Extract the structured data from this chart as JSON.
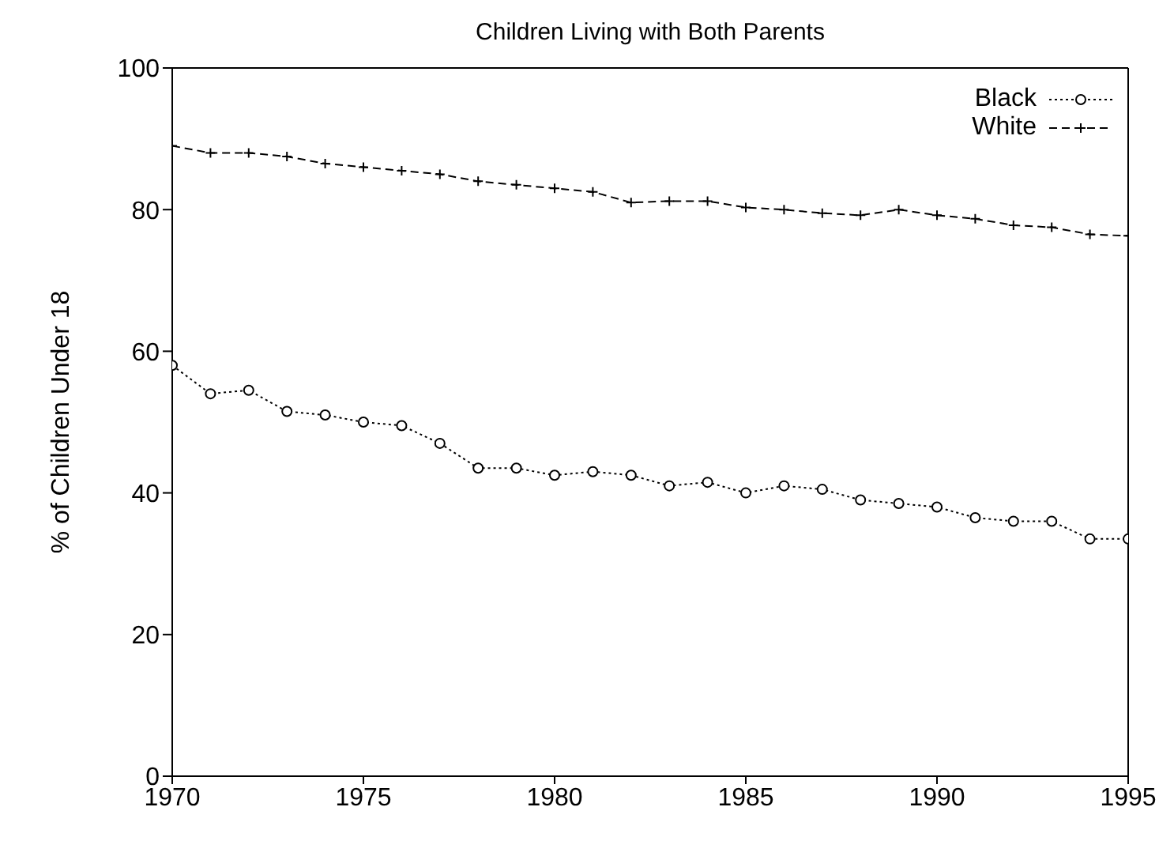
{
  "chart_data": {
    "type": "line",
    "title": "Children Living with Both Parents",
    "ylabel": "% of Children Under 18",
    "x": [
      1970,
      1971,
      1972,
      1973,
      1974,
      1975,
      1976,
      1977,
      1978,
      1979,
      1980,
      1981,
      1982,
      1983,
      1984,
      1985,
      1986,
      1987,
      1988,
      1989,
      1990,
      1991,
      1992,
      1993,
      1994,
      1995
    ],
    "series": [
      {
        "name": "Black",
        "color": "#000000",
        "marker": "circle",
        "line_style": "dotted",
        "values": [
          58,
          54,
          54.5,
          51.5,
          51,
          50,
          49.5,
          47,
          43.5,
          43.5,
          42.5,
          43,
          42.5,
          41,
          41.5,
          40,
          41,
          40.5,
          39,
          38.5,
          38,
          36.5,
          36,
          36,
          33.5,
          33.5
        ]
      },
      {
        "name": "White",
        "color": "#000000",
        "marker": "cross",
        "line_style": "dashed",
        "values": [
          89,
          88,
          88,
          87.5,
          86.5,
          86,
          85.5,
          85,
          84,
          83.5,
          83,
          82.5,
          81,
          81.2,
          81.2,
          80.3,
          80,
          79.5,
          79.2,
          80,
          79.2,
          78.7,
          77.8,
          77.5,
          76.5,
          76.3
        ]
      }
    ],
    "xlim": [
      1970,
      1995
    ],
    "xticks": [
      1970,
      1975,
      1980,
      1985,
      1990,
      1995
    ],
    "ylim": [
      0,
      100
    ],
    "yticks": [
      0,
      20,
      40,
      60,
      80,
      100
    ],
    "grid": false,
    "legend": "top right"
  }
}
